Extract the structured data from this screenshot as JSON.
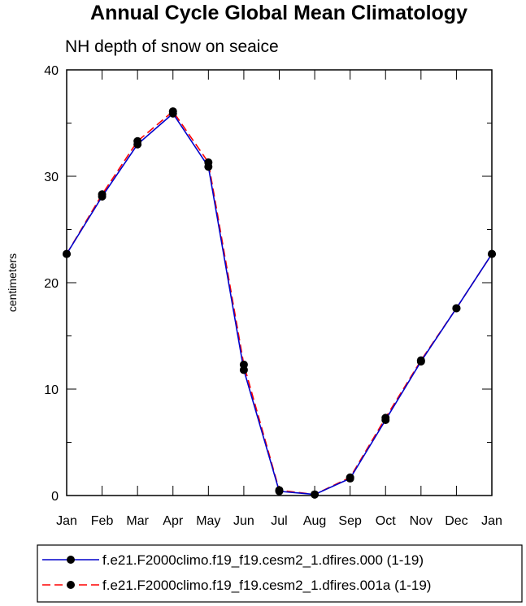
{
  "chart_data": {
    "type": "line",
    "title": "Annual Cycle Global Mean Climatology",
    "subtitle": "NH depth of snow on seaice",
    "xlabel": "",
    "ylabel": "centimeters",
    "categories": [
      "Jan",
      "Feb",
      "Mar",
      "Apr",
      "May",
      "Jun",
      "Jul",
      "Aug",
      "Sep",
      "Oct",
      "Nov",
      "Dec",
      "Jan"
    ],
    "ylim": [
      0,
      40
    ],
    "yticks": [
      "0",
      "10",
      "20",
      "30",
      "40"
    ],
    "series": [
      {
        "name": "f.e21.F2000climo.f19_f19.cesm2_1.dfires.000 (1-19)",
        "color": "#0000cc",
        "dash": "solid",
        "values": [
          22.7,
          28.1,
          33.0,
          35.9,
          30.9,
          11.8,
          0.4,
          0.1,
          1.6,
          7.1,
          12.6,
          17.6,
          22.7
        ]
      },
      {
        "name": "f.e21.F2000climo.f19_f19.cesm2_1.dfires.001a (1-19)",
        "color": "#ff0000",
        "dash": "dashed",
        "values": [
          22.7,
          28.3,
          33.3,
          36.1,
          31.3,
          12.3,
          0.5,
          0.1,
          1.7,
          7.3,
          12.7,
          17.6,
          22.7
        ]
      }
    ],
    "grid": false,
    "legend": "bottom"
  }
}
